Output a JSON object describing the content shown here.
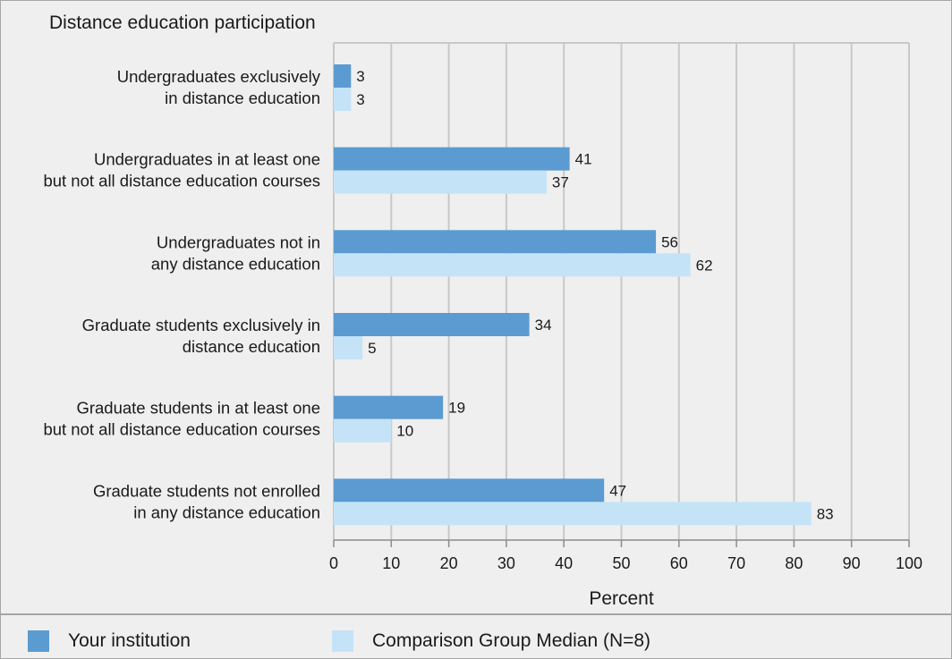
{
  "chart_data": {
    "type": "bar",
    "orientation": "horizontal",
    "title": "Distance education participation",
    "xlabel": "Percent",
    "xlim": [
      0,
      100
    ],
    "xticks": [
      0,
      10,
      20,
      30,
      40,
      50,
      60,
      70,
      80,
      90,
      100
    ],
    "grid": true,
    "legend_position": "bottom",
    "categories": [
      [
        "Undergraduates exclusively",
        "in distance education"
      ],
      [
        "Undergraduates in at least one",
        "but not all distance education courses"
      ],
      [
        "Undergraduates not in",
        "any distance education"
      ],
      [
        "Graduate students exclusively in",
        "distance education"
      ],
      [
        "Graduate students in at least one",
        "but not all distance education courses"
      ],
      [
        "Graduate students not enrolled",
        "in any distance education"
      ]
    ],
    "series": [
      {
        "name": "Your institution",
        "color": "#5b9bd1",
        "values": [
          3,
          41,
          56,
          34,
          19,
          47
        ]
      },
      {
        "name": "Comparison Group Median (N=8)",
        "color": "#c5e3f7",
        "values": [
          3,
          37,
          62,
          5,
          10,
          83
        ]
      }
    ]
  }
}
